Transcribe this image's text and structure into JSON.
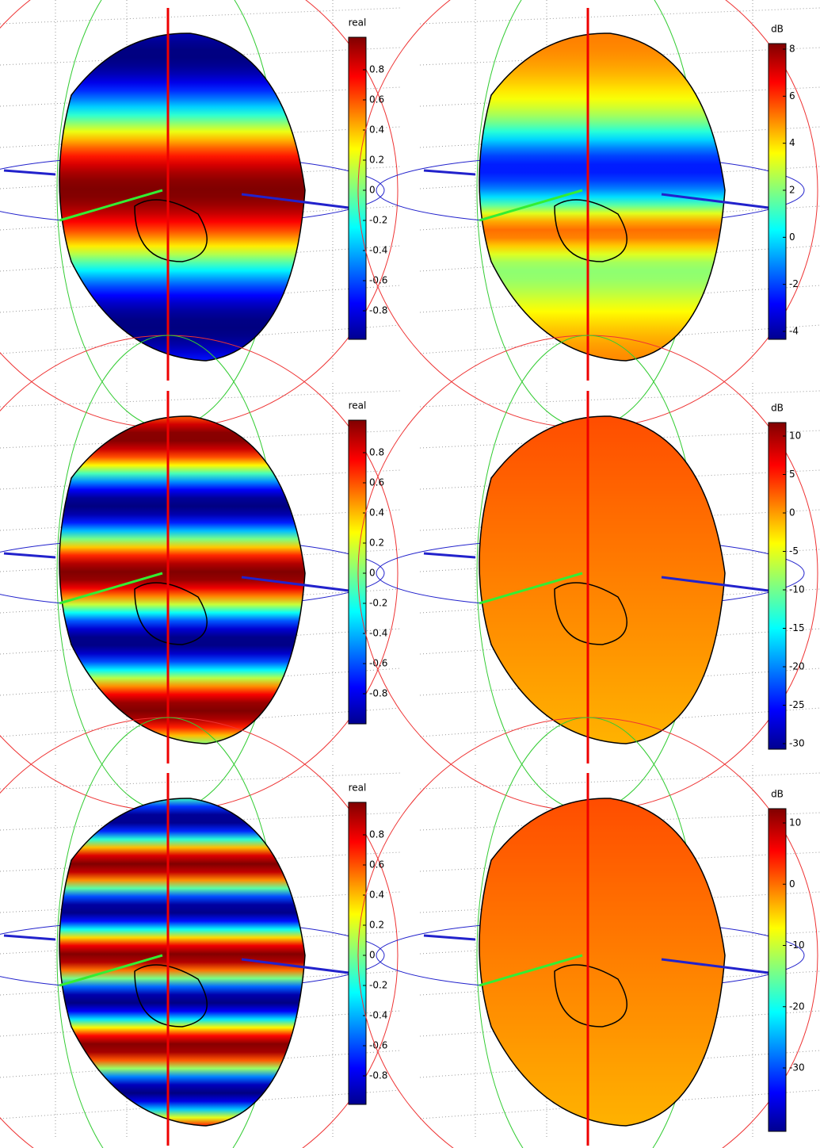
{
  "panels": [
    {
      "colorbar": {
        "label": "real",
        "ticks": [
          "0.8",
          "0.6",
          "0.4",
          "0.2",
          "0",
          "-0.2",
          "-0.4",
          "-0.6",
          "-0.8"
        ]
      }
    },
    {
      "colorbar": {
        "label": "dB",
        "ticks": [
          "8",
          "6",
          "4",
          "2",
          "0",
          "-2",
          "-4"
        ]
      }
    },
    {
      "colorbar": {
        "label": "real",
        "ticks": [
          "0.8",
          "0.6",
          "0.4",
          "0.2",
          "0",
          "-0.2",
          "-0.4",
          "-0.6",
          "-0.8"
        ]
      }
    },
    {
      "colorbar": {
        "label": "dB",
        "ticks": [
          "10",
          "5",
          "0",
          "-5",
          "-10",
          "-15",
          "-20",
          "-25",
          "-30"
        ]
      }
    },
    {
      "colorbar": {
        "label": "real",
        "ticks": [
          "0.8",
          "0.6",
          "0.4",
          "0.2",
          "0",
          "-0.2",
          "-0.4",
          "-0.6",
          "-0.8"
        ]
      }
    },
    {
      "colorbar": {
        "label": "dB",
        "ticks": [
          "10",
          "0",
          "-10",
          "-20",
          "-30"
        ]
      }
    }
  ]
}
